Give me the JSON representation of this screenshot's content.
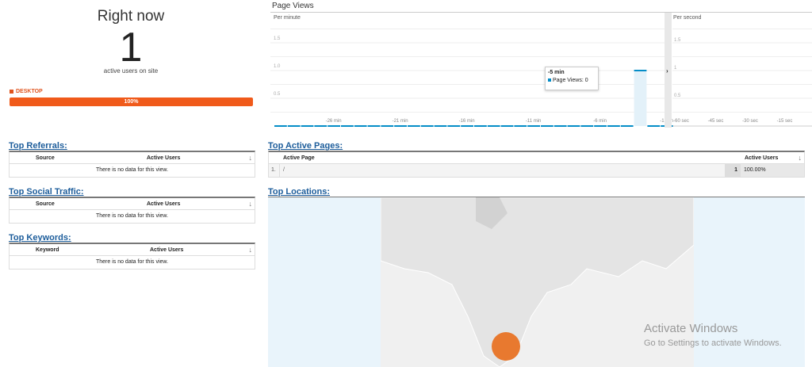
{
  "right_now": {
    "title": "Right now",
    "count": "1",
    "subtitle": "active users on site",
    "device": {
      "label": "DESKTOP",
      "percent_label": "100%",
      "percent": 100,
      "color": "#f05a1a"
    }
  },
  "page_views": {
    "title": "Page Views",
    "per_minute_label": "Per minute",
    "per_second_label": "Per second",
    "tooltip": {
      "title": "-5 min",
      "text": "Page Views: 0"
    }
  },
  "chart_data": [
    {
      "type": "bar",
      "title": "Per minute",
      "x": [
        -30,
        -29,
        -28,
        -27,
        -26,
        -25,
        -24,
        -23,
        -22,
        -21,
        -20,
        -19,
        -18,
        -17,
        -16,
        -15,
        -14,
        -13,
        -12,
        -11,
        -10,
        -9,
        -8,
        -7,
        -6,
        -5,
        -4,
        -3,
        -2,
        -1
      ],
      "values": [
        0,
        0,
        0,
        0,
        0,
        0,
        0,
        0,
        0,
        0,
        0,
        0,
        0,
        0,
        0,
        0,
        0,
        0,
        0,
        0,
        0,
        0,
        0,
        0,
        0,
        0,
        0,
        1,
        0,
        0
      ],
      "xticks": [
        "-26 min",
        "-21 min",
        "-16 min",
        "-11 min",
        "-6 min",
        "-1 min"
      ],
      "xtick_values": [
        -26,
        -21,
        -16,
        -11,
        -6,
        -1
      ],
      "yticks": [
        "0.5",
        "1.0",
        "1.5"
      ],
      "ylim": [
        0,
        2
      ],
      "grid": true,
      "color": "#058dc7"
    },
    {
      "type": "bar",
      "title": "Per second",
      "values": [],
      "xticks": [
        "-60 sec",
        "-45 sec",
        "-30 sec",
        "-15 sec"
      ],
      "xtick_values": [
        -60,
        -45,
        -30,
        -15
      ],
      "yticks": [
        "0.5",
        "1",
        "1.5"
      ],
      "ylim": [
        0,
        2
      ]
    }
  ],
  "referrals": {
    "title": "Top Referrals:",
    "col1": "Source",
    "col2": "Active Users",
    "empty": "There is no data for this view."
  },
  "social": {
    "title": "Top Social Traffic:",
    "col1": "Source",
    "col2": "Active Users",
    "empty": "There is no data for this view."
  },
  "keywords": {
    "title": "Top Keywords:",
    "col1": "Keyword",
    "col2": "Active Users",
    "empty": "There is no data for this view."
  },
  "pages": {
    "title": "Top Active Pages:",
    "col1": "Active Page",
    "col2": "Active Users",
    "rows": [
      {
        "index": "1.",
        "page": "/",
        "users": "1",
        "percent": "100.00%"
      }
    ]
  },
  "locations": {
    "title": "Top Locations:"
  },
  "watermark": {
    "line1": "Activate Windows",
    "line2": "Go to Settings to activate Windows."
  }
}
